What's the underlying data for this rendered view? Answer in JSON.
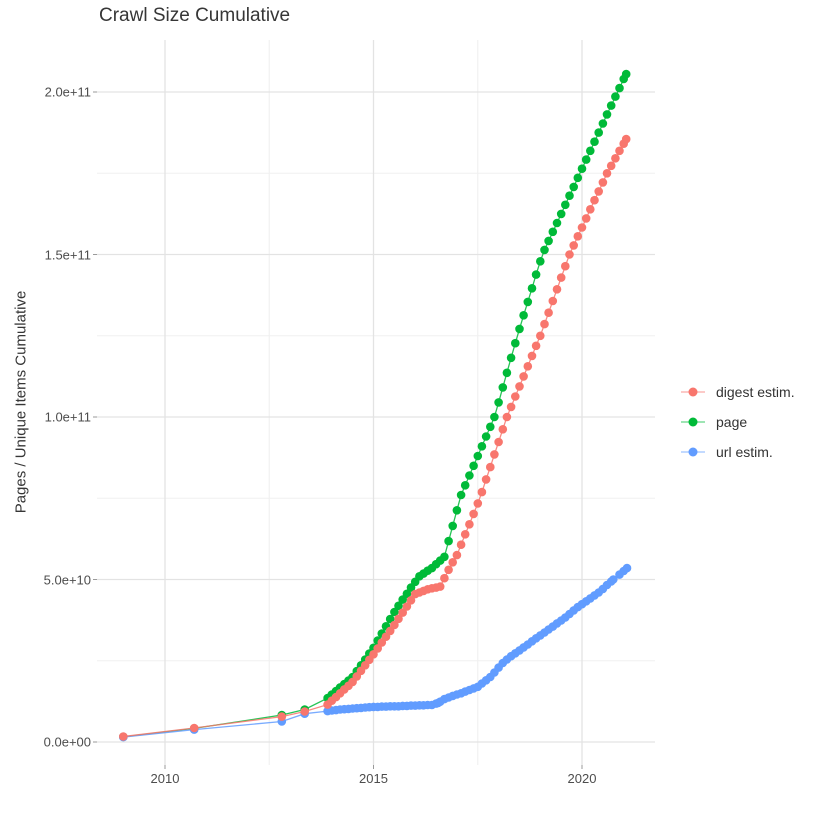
{
  "title": "Crawl Size Cumulative",
  "y_axis_label": "Pages / Unique Items Cumulative",
  "legend": {
    "items": [
      {
        "label": "digest estim.",
        "color": "#F8766D"
      },
      {
        "label": "page",
        "color": "#00BA38"
      },
      {
        "label": "url estim.",
        "color": "#619CFF"
      }
    ]
  },
  "chart_data": {
    "type": "scatter",
    "title": "Crawl Size Cumulative",
    "xlabel": "",
    "ylabel": "Pages / Unique Items Cumulative",
    "x_range": [
      2008.35,
      2021.75
    ],
    "y_range": [
      0,
      223000000000.0
    ],
    "grid": true,
    "legend_position": "right",
    "x_ticks": {
      "major": [
        2010,
        2015,
        2020
      ],
      "labels": [
        "2010",
        "2015",
        "2020"
      ],
      "minor": [
        2012.5,
        2017.5
      ]
    },
    "y_ticks": {
      "major": [
        0,
        50000000000.0,
        100000000000.0,
        150000000000.0,
        200000000000.0
      ],
      "labels": [
        "0.0e+00",
        "5.0e+10",
        "1.0e+11",
        "1.5e+11",
        "2.0e+11"
      ],
      "minor": [
        25000000000.0,
        75000000000.0,
        125000000000.0,
        175000000000.0
      ]
    },
    "series": [
      {
        "name": "digest estim.",
        "color": "#F8766D",
        "points": [
          [
            2009.0,
            1700000000.0
          ],
          [
            2010.7,
            4300000000.0
          ],
          [
            2012.8,
            7800000000.0
          ],
          [
            2013.35,
            9400000000.0
          ],
          [
            2013.9,
            11500000000.0
          ],
          [
            2014.0,
            12700000000.0
          ],
          [
            2014.1,
            13800000000.0
          ],
          [
            2014.2,
            15000000000.0
          ],
          [
            2014.3,
            16200000000.0
          ],
          [
            2014.4,
            17300000000.0
          ],
          [
            2014.5,
            18500000000.0
          ],
          [
            2014.6,
            20200000000.0
          ],
          [
            2014.7,
            21900000000.0
          ],
          [
            2014.8,
            23600000000.0
          ],
          [
            2014.9,
            25300000000.0
          ],
          [
            2015.0,
            27000000000.0
          ],
          [
            2015.1,
            28800000000.0
          ],
          [
            2015.2,
            30600000000.0
          ],
          [
            2015.3,
            32400000000.0
          ],
          [
            2015.4,
            34200000000.0
          ],
          [
            2015.5,
            36000000000.0
          ],
          [
            2015.6,
            37900000000.0
          ],
          [
            2015.7,
            39800000000.0
          ],
          [
            2015.8,
            41700000000.0
          ],
          [
            2015.9,
            43600000000.0
          ],
          [
            2016.0,
            45500000000.0
          ],
          [
            2016.1,
            46000000000.0
          ],
          [
            2016.2,
            46500000000.0
          ],
          [
            2016.3,
            47000000000.0
          ],
          [
            2016.4,
            47300000000.0
          ],
          [
            2016.5,
            47500000000.0
          ],
          [
            2016.6,
            47800000000.0
          ],
          [
            2016.7,
            50400000000.0
          ],
          [
            2016.8,
            53000000000.0
          ],
          [
            2016.9,
            55300000000.0
          ],
          [
            2017.0,
            57500000000.0
          ],
          [
            2017.1,
            60700000000.0
          ],
          [
            2017.2,
            63900000000.0
          ],
          [
            2017.3,
            67000000000.0
          ],
          [
            2017.4,
            70200000000.0
          ],
          [
            2017.5,
            73400000000.0
          ],
          [
            2017.6,
            76900000000.0
          ],
          [
            2017.7,
            80800000000.0
          ],
          [
            2017.8,
            84600000000.0
          ],
          [
            2017.9,
            88500000000.0
          ],
          [
            2018.0,
            92300000000.0
          ],
          [
            2018.1,
            96200000000.0
          ],
          [
            2018.2,
            100000000000.0
          ],
          [
            2018.3,
            103100000000.0
          ],
          [
            2018.4,
            106300000000.0
          ],
          [
            2018.5,
            109400000000.0
          ],
          [
            2018.6,
            112500000000.0
          ],
          [
            2018.7,
            115600000000.0
          ],
          [
            2018.8,
            118800000000.0
          ],
          [
            2018.9,
            121900000000.0
          ],
          [
            2019.0,
            125000000000.0
          ],
          [
            2019.1,
            128600000000.0
          ],
          [
            2019.2,
            132100000000.0
          ],
          [
            2019.3,
            135700000000.0
          ],
          [
            2019.4,
            139300000000.0
          ],
          [
            2019.5,
            142900000000.0
          ],
          [
            2019.6,
            146400000000.0
          ],
          [
            2019.7,
            150000000000.0
          ],
          [
            2019.8,
            152800000000.0
          ],
          [
            2019.9,
            155600000000.0
          ],
          [
            2020.0,
            158300000000.0
          ],
          [
            2020.1,
            161100000000.0
          ],
          [
            2020.2,
            163900000000.0
          ],
          [
            2020.3,
            166700000000.0
          ],
          [
            2020.4,
            169400000000.0
          ],
          [
            2020.5,
            172200000000.0
          ],
          [
            2020.6,
            175000000000.0
          ],
          [
            2020.7,
            177300000000.0
          ],
          [
            2020.8,
            179600000000.0
          ],
          [
            2020.9,
            181900000000.0
          ],
          [
            2021.0,
            184100000000.0
          ],
          [
            2021.06,
            185500000000.0
          ]
        ]
      },
      {
        "name": "page",
        "color": "#00BA38",
        "points": [
          [
            2009.0,
            1600000000.0
          ],
          [
            2010.7,
            4200000000.0
          ],
          [
            2012.8,
            8300000000.0
          ],
          [
            2013.35,
            10000000000.0
          ],
          [
            2013.9,
            13500000000.0
          ],
          [
            2014.0,
            14600000000.0
          ],
          [
            2014.1,
            15700000000.0
          ],
          [
            2014.2,
            16800000000.0
          ],
          [
            2014.3,
            17800000000.0
          ],
          [
            2014.4,
            18900000000.0
          ],
          [
            2014.5,
            20000000000.0
          ],
          [
            2014.6,
            21800000000.0
          ],
          [
            2014.7,
            23600000000.0
          ],
          [
            2014.8,
            25400000000.0
          ],
          [
            2014.9,
            27200000000.0
          ],
          [
            2015.0,
            29000000000.0
          ],
          [
            2015.1,
            31200000000.0
          ],
          [
            2015.2,
            33400000000.0
          ],
          [
            2015.3,
            35600000000.0
          ],
          [
            2015.4,
            37800000000.0
          ],
          [
            2015.5,
            40000000000.0
          ],
          [
            2015.6,
            41900000000.0
          ],
          [
            2015.7,
            43800000000.0
          ],
          [
            2015.8,
            45600000000.0
          ],
          [
            2015.9,
            47500000000.0
          ],
          [
            2016.0,
            49300000000.0
          ],
          [
            2016.1,
            51000000000.0
          ],
          [
            2016.2,
            51800000000.0
          ],
          [
            2016.3,
            52700000000.0
          ],
          [
            2016.4,
            53500000000.0
          ],
          [
            2016.5,
            54700000000.0
          ],
          [
            2016.6,
            55800000000.0
          ],
          [
            2016.7,
            57000000000.0
          ],
          [
            2016.8,
            61800000000.0
          ],
          [
            2016.9,
            66500000000.0
          ],
          [
            2017.0,
            71300000000.0
          ],
          [
            2017.1,
            76000000000.0
          ],
          [
            2017.2,
            79000000000.0
          ],
          [
            2017.3,
            82000000000.0
          ],
          [
            2017.4,
            85000000000.0
          ],
          [
            2017.5,
            88000000000.0
          ],
          [
            2017.6,
            91000000000.0
          ],
          [
            2017.7,
            94000000000.0
          ],
          [
            2017.8,
            97000000000.0
          ],
          [
            2017.9,
            100000000000.0
          ],
          [
            2018.0,
            104500000000.0
          ],
          [
            2018.1,
            109100000000.0
          ],
          [
            2018.2,
            113600000000.0
          ],
          [
            2018.3,
            118200000000.0
          ],
          [
            2018.4,
            122700000000.0
          ],
          [
            2018.5,
            127100000000.0
          ],
          [
            2018.6,
            131300000000.0
          ],
          [
            2018.7,
            135400000000.0
          ],
          [
            2018.8,
            139600000000.0
          ],
          [
            2018.9,
            143800000000.0
          ],
          [
            2019.0,
            147900000000.0
          ],
          [
            2019.1,
            151400000000.0
          ],
          [
            2019.2,
            154200000000.0
          ],
          [
            2019.3,
            157000000000.0
          ],
          [
            2019.4,
            159700000000.0
          ],
          [
            2019.5,
            162500000000.0
          ],
          [
            2019.6,
            165300000000.0
          ],
          [
            2019.7,
            168100000000.0
          ],
          [
            2019.8,
            170800000000.0
          ],
          [
            2019.9,
            173600000000.0
          ],
          [
            2020.0,
            176400000000.0
          ],
          [
            2020.1,
            179200000000.0
          ],
          [
            2020.2,
            181900000000.0
          ],
          [
            2020.3,
            184700000000.0
          ],
          [
            2020.4,
            187500000000.0
          ],
          [
            2020.5,
            190300000000.0
          ],
          [
            2020.6,
            193100000000.0
          ],
          [
            2020.7,
            195800000000.0
          ],
          [
            2020.8,
            198600000000.0
          ],
          [
            2020.9,
            201200000000.0
          ],
          [
            2021.0,
            204000000000.0
          ],
          [
            2021.06,
            205500000000.0
          ]
        ]
      },
      {
        "name": "url estim.",
        "color": "#619CFF",
        "points": [
          [
            2009.0,
            1500000000.0
          ],
          [
            2010.7,
            3800000000.0
          ],
          [
            2012.8,
            6300000000.0
          ],
          [
            2013.35,
            8700000000.0
          ],
          [
            2013.9,
            9500000000.0
          ],
          [
            2014.0,
            9700000000.0
          ],
          [
            2014.1,
            9800000000.0
          ],
          [
            2014.2,
            10000000000.0
          ],
          [
            2014.3,
            10100000000.0
          ],
          [
            2014.4,
            10200000000.0
          ],
          [
            2014.5,
            10300000000.0
          ],
          [
            2014.6,
            10400000000.0
          ],
          [
            2014.7,
            10500000000.0
          ],
          [
            2014.8,
            10600000000.0
          ],
          [
            2014.9,
            10700000000.0
          ],
          [
            2015.0,
            10800000000.0
          ],
          [
            2015.1,
            10800000000.0
          ],
          [
            2015.2,
            10900000000.0
          ],
          [
            2015.3,
            10900000000.0
          ],
          [
            2015.4,
            11000000000.0
          ],
          [
            2015.5,
            11000000000.0
          ],
          [
            2015.6,
            11000000000.0
          ],
          [
            2015.7,
            11100000000.0
          ],
          [
            2015.8,
            11100000000.0
          ],
          [
            2015.9,
            11200000000.0
          ],
          [
            2016.0,
            11200000000.0
          ],
          [
            2016.1,
            11300000000.0
          ],
          [
            2016.2,
            11300000000.0
          ],
          [
            2016.3,
            11400000000.0
          ],
          [
            2016.4,
            11400000000.0
          ],
          [
            2016.5,
            11800000000.0
          ],
          [
            2016.55,
            12000000000.0
          ],
          [
            2016.6,
            12400000000.0
          ],
          [
            2016.7,
            13200000000.0
          ],
          [
            2016.8,
            13700000000.0
          ],
          [
            2016.9,
            14200000000.0
          ],
          [
            2017.0,
            14600000000.0
          ],
          [
            2017.1,
            15000000000.0
          ],
          [
            2017.2,
            15500000000.0
          ],
          [
            2017.3,
            16000000000.0
          ],
          [
            2017.4,
            16500000000.0
          ],
          [
            2017.5,
            17000000000.0
          ],
          [
            2017.6,
            18000000000.0
          ],
          [
            2017.7,
            19000000000.0
          ],
          [
            2017.8,
            20000000000.0
          ],
          [
            2017.9,
            21400000000.0
          ],
          [
            2018.0,
            22900000000.0
          ],
          [
            2018.1,
            24300000000.0
          ],
          [
            2018.2,
            25400000000.0
          ],
          [
            2018.3,
            26400000000.0
          ],
          [
            2018.4,
            27300000000.0
          ],
          [
            2018.5,
            28200000000.0
          ],
          [
            2018.6,
            29100000000.0
          ],
          [
            2018.7,
            30000000000.0
          ],
          [
            2018.8,
            31000000000.0
          ],
          [
            2018.9,
            31900000000.0
          ],
          [
            2019.0,
            32800000000.0
          ],
          [
            2019.1,
            33700000000.0
          ],
          [
            2019.2,
            34600000000.0
          ],
          [
            2019.3,
            35500000000.0
          ],
          [
            2019.4,
            36500000000.0
          ],
          [
            2019.5,
            37400000000.0
          ],
          [
            2019.6,
            38300000000.0
          ],
          [
            2019.7,
            39400000000.0
          ],
          [
            2019.8,
            40500000000.0
          ],
          [
            2019.9,
            41500000000.0
          ],
          [
            2020.0,
            42400000000.0
          ],
          [
            2020.1,
            43300000000.0
          ],
          [
            2020.2,
            44200000000.0
          ],
          [
            2020.3,
            45100000000.0
          ],
          [
            2020.4,
            46000000000.0
          ],
          [
            2020.5,
            47100000000.0
          ],
          [
            2020.6,
            48300000000.0
          ],
          [
            2020.7,
            49400000000.0
          ],
          [
            2020.75,
            50000000000.0
          ],
          [
            2020.9,
            51500000000.0
          ],
          [
            2021.0,
            52600000000.0
          ],
          [
            2021.08,
            53500000000.0
          ]
        ]
      }
    ]
  }
}
